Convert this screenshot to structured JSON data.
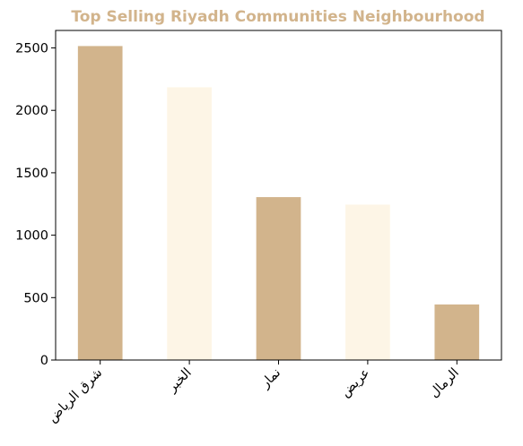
{
  "chart_data": {
    "type": "bar",
    "title": "Top Selling Riyadh Communities Neighbourhood",
    "xlabel": "",
    "ylabel": "",
    "categories": [
      "شرق الرياض",
      "الخبر",
      "نمار",
      "عريض",
      "الرمال"
    ],
    "values": [
      2515,
      2185,
      1305,
      1245,
      445
    ],
    "ylim": [
      0,
      2640
    ],
    "yticks": [
      0,
      500,
      1000,
      1500,
      2000,
      2500
    ],
    "grid": false,
    "legend": "none",
    "x_tick_rotation": -45
  },
  "colors": {
    "title": "#d2b48c",
    "bar_primary": "#d2b48c",
    "bar_secondary": "#fdf5e6",
    "axis": "#000000"
  }
}
